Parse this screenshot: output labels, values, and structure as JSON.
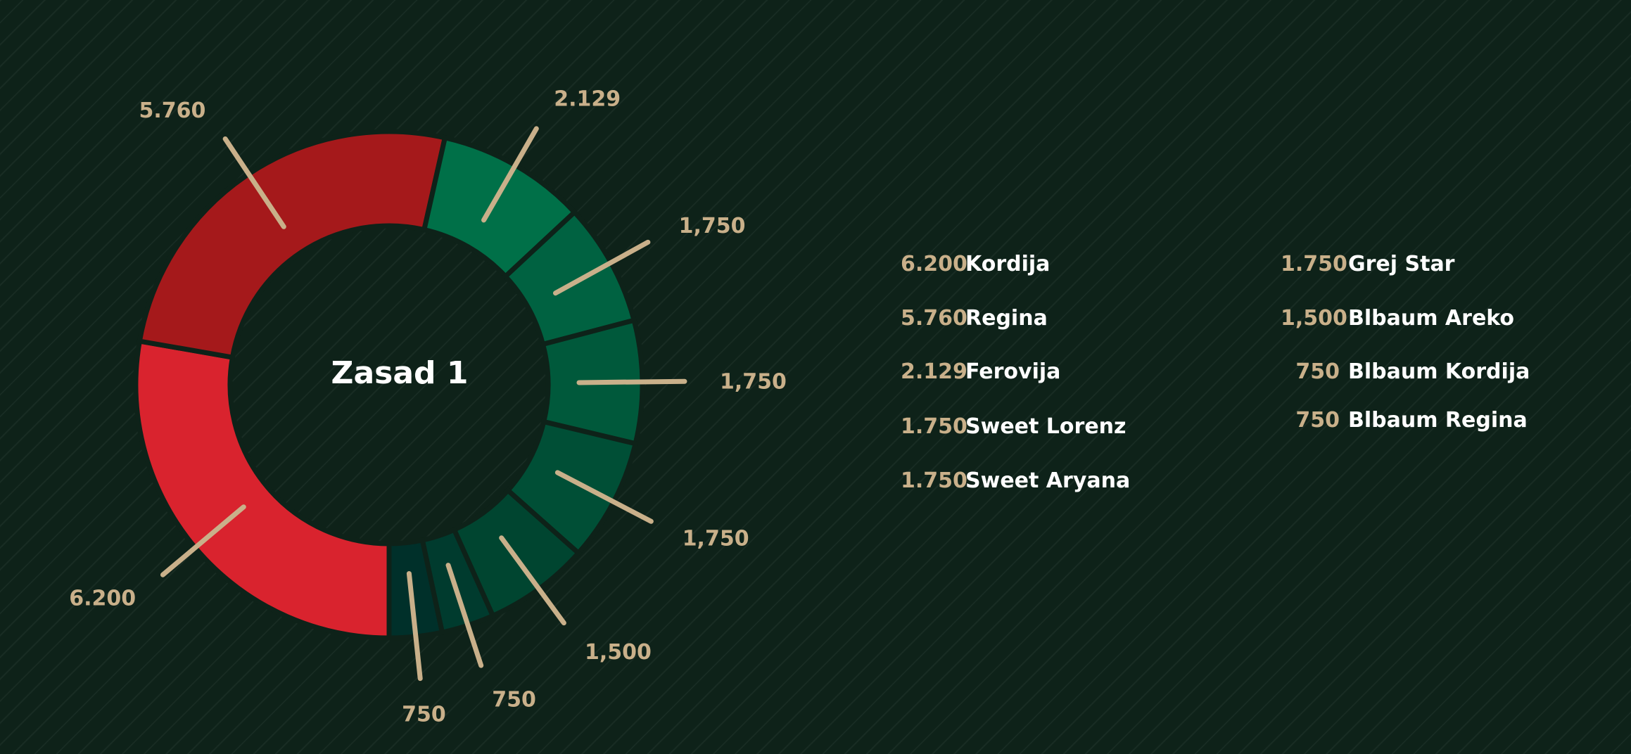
{
  "chart_data": {
    "type": "donut",
    "center_title": "Zasad 1",
    "slices": [
      {
        "label": "6.200",
        "value": 6200,
        "color": "#d9232e"
      },
      {
        "label": "5.760",
        "value": 5760,
        "color": "#a5191b"
      },
      {
        "label": "2.129",
        "value": 2129,
        "color": "#007048"
      },
      {
        "label": "1,750",
        "value": 1750,
        "color": "#006241"
      },
      {
        "label": "1,750",
        "value": 1750,
        "color": "#00593b"
      },
      {
        "label": "1,750",
        "value": 1750,
        "color": "#004f36"
      },
      {
        "label": "1,500",
        "value": 1500,
        "color": "#004530"
      },
      {
        "label": "750",
        "value": 750,
        "color": "#003b2e"
      },
      {
        "label": "750",
        "value": 750,
        "color": "#00302a"
      }
    ],
    "legend": {
      "left": [
        {
          "value": "6.200",
          "name": "Kordija"
        },
        {
          "value": "5.760",
          "name": "Regina"
        },
        {
          "value": "2.129",
          "name": "Ferovija"
        },
        {
          "value": "1.750",
          "name": "Sweet Lorenz"
        },
        {
          "value": "1.750",
          "name": "Sweet Aryana"
        }
      ],
      "right": [
        {
          "value": "1.750",
          "name": "Grej Star"
        },
        {
          "value": "1,500",
          "name": "Blbaum Areko"
        },
        {
          "value": "750",
          "name": "Blbaum Kordija"
        },
        {
          "value": "750",
          "name": "Blbaum Regina"
        }
      ]
    },
    "colors": {
      "background": "#0e2219",
      "label": "#c9b08a",
      "leader": "#c9b08a",
      "title": "#ffffff"
    }
  }
}
